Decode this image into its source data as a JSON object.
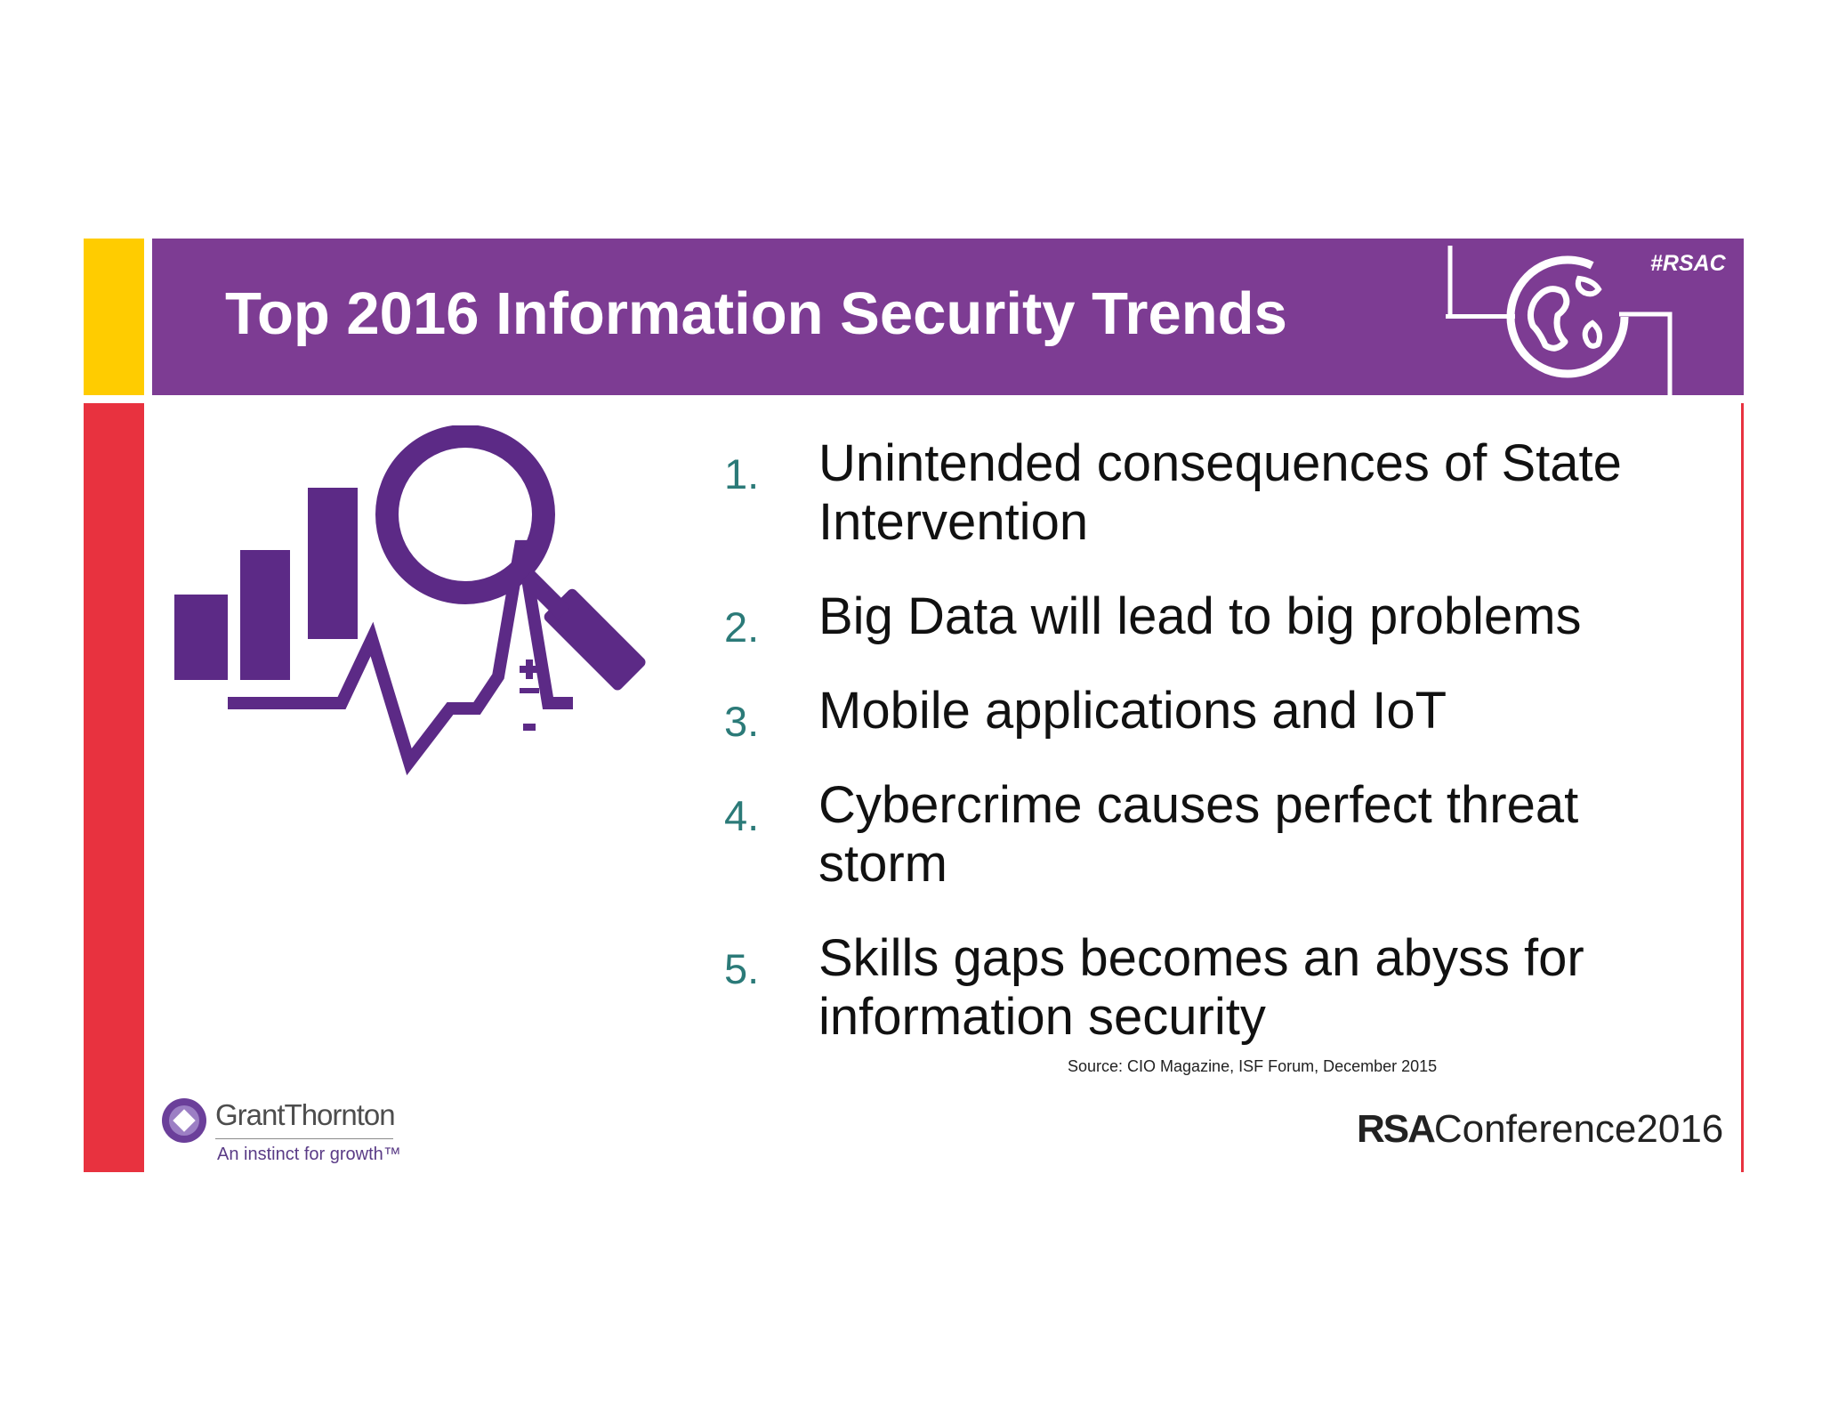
{
  "header": {
    "title": "Top 2016 Information Security Trends",
    "hashtag": "#RSAC",
    "icon": "globe-icon"
  },
  "hero": {
    "icon": "analytics-magnifier-icon"
  },
  "trends": [
    {
      "num": "1.",
      "text": "Unintended consequences of State Intervention"
    },
    {
      "num": "2.",
      "text": "Big Data will lead to big problems"
    },
    {
      "num": "3.",
      "text": "Mobile applications and IoT"
    },
    {
      "num": "4.",
      "text": "Cybercrime causes perfect threat storm"
    },
    {
      "num": "5.",
      "text": "Skills gaps becomes an abyss for information security"
    }
  ],
  "source": "Source: CIO Magazine, ISF Forum, December 2015",
  "footer": {
    "gt_name": "GrantThornton",
    "gt_tagline": "An instinct for growth™",
    "rsa_bold": "RSA",
    "rsa_rest": "Conference2016"
  },
  "colors": {
    "purple": "#7d3c93",
    "yellow": "#ffcc00",
    "red": "#e8323f",
    "number_teal": "#2b7a78"
  }
}
